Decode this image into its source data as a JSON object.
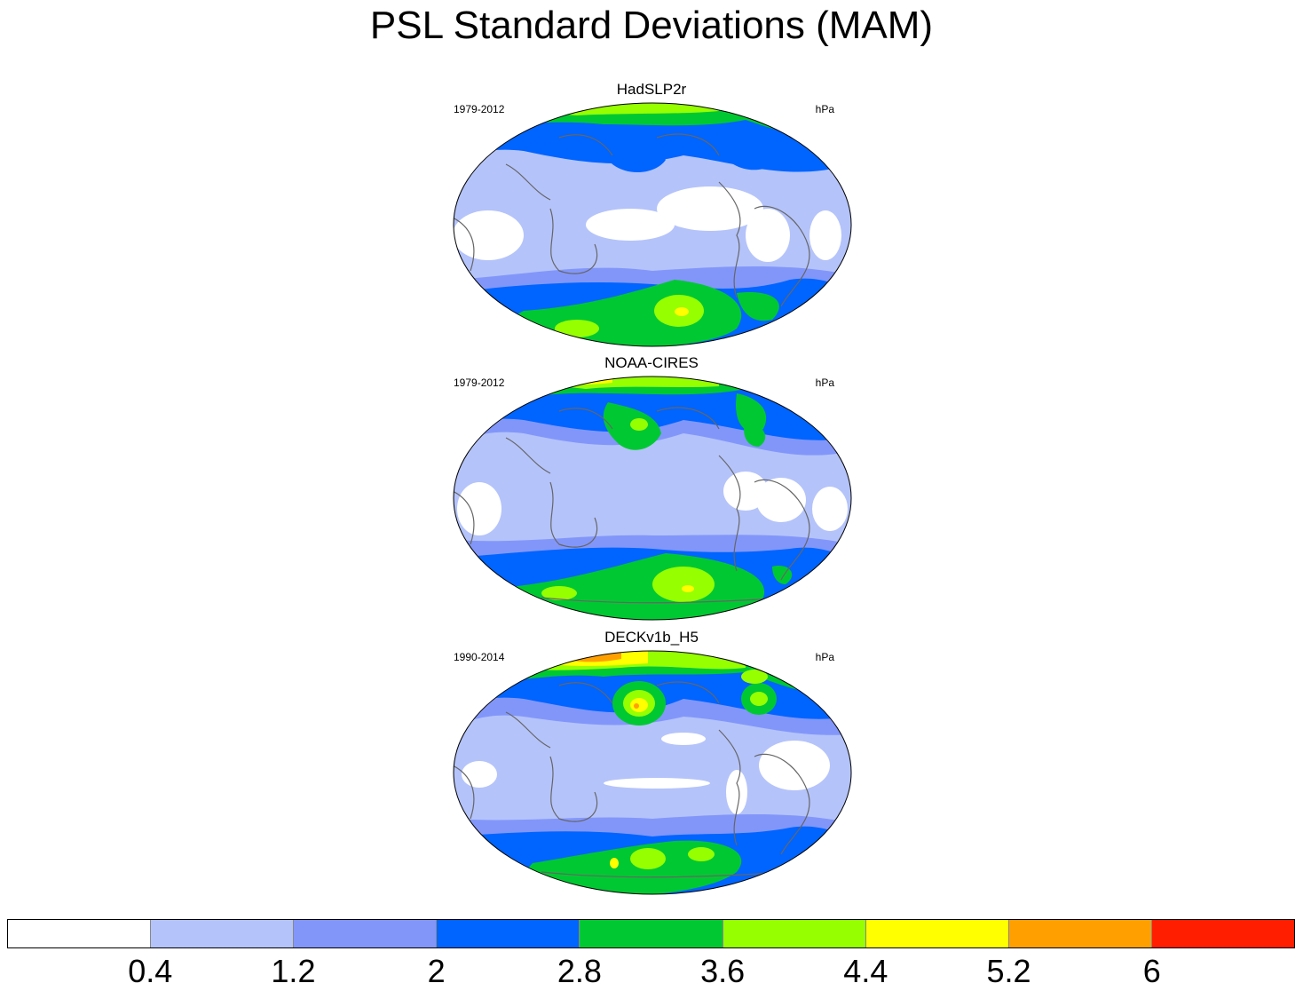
{
  "title": "PSL Standard Deviations (MAM)",
  "panels": [
    {
      "name": "HadSLP2r",
      "period": "1979-2012",
      "units": "hPa"
    },
    {
      "name": "NOAA-CIRES",
      "period": "1979-2012",
      "units": "hPa"
    },
    {
      "name": "DECKv1b_H5",
      "period": "1990-2014",
      "units": "hPa"
    }
  ],
  "colorbar": {
    "colors": [
      "#ffffff",
      "#b4c3fa",
      "#8296fa",
      "#0064ff",
      "#00c832",
      "#96ff00",
      "#ffff00",
      "#ffa000",
      "#ff1e00"
    ],
    "labels": [
      "0.4",
      "1.2",
      "2",
      "2.8",
      "3.6",
      "4.4",
      "5.2",
      "6"
    ]
  }
}
